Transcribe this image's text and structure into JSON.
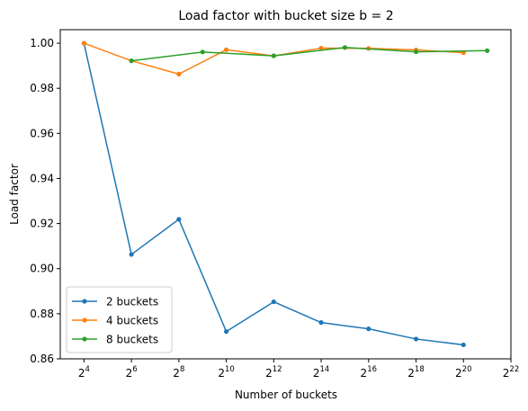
{
  "chart_data": {
    "type": "line",
    "title": "Load factor with bucket size b = 2",
    "xlabel": "Number of buckets",
    "ylabel": "Load factor",
    "xscale": "log2",
    "xlim_exponent": [
      3.0,
      22
    ],
    "ylim": [
      0.86,
      1.006
    ],
    "x_ticks": [
      {
        "exp": 4,
        "base": "2",
        "sup": "4"
      },
      {
        "exp": 6,
        "base": "2",
        "sup": "6"
      },
      {
        "exp": 8,
        "base": "2",
        "sup": "8"
      },
      {
        "exp": 10,
        "base": "2",
        "sup": "10"
      },
      {
        "exp": 12,
        "base": "2",
        "sup": "12"
      },
      {
        "exp": 14,
        "base": "2",
        "sup": "14"
      },
      {
        "exp": 16,
        "base": "2",
        "sup": "16"
      },
      {
        "exp": 18,
        "base": "2",
        "sup": "18"
      },
      {
        "exp": 20,
        "base": "2",
        "sup": "20"
      },
      {
        "exp": 22,
        "base": "2",
        "sup": "22"
      }
    ],
    "y_ticks": [
      {
        "value": 0.86,
        "label": "0.86"
      },
      {
        "value": 0.88,
        "label": "0.88"
      },
      {
        "value": 0.9,
        "label": "0.90"
      },
      {
        "value": 0.92,
        "label": "0.92"
      },
      {
        "value": 0.94,
        "label": "0.94"
      },
      {
        "value": 0.96,
        "label": "0.96"
      },
      {
        "value": 0.98,
        "label": "0.98"
      },
      {
        "value": 1.0,
        "label": "1.00"
      }
    ],
    "grid": false,
    "legend_position": "lower-left",
    "series": [
      {
        "name": "2 buckets",
        "color": "#1f77b4",
        "x_exponents": [
          4,
          6,
          8,
          10,
          12,
          14,
          16,
          18,
          20
        ],
        "values": [
          1.0,
          0.9063,
          0.9219,
          0.8721,
          0.8853,
          0.8761,
          0.8733,
          0.8688,
          0.8662
        ]
      },
      {
        "name": "4 buckets",
        "color": "#ff7f0e",
        "x_exponents": [
          4,
          6,
          8,
          10,
          12,
          14,
          16,
          18,
          20
        ],
        "values": [
          1.0,
          0.9922,
          0.9863,
          0.9971,
          0.9944,
          0.9978,
          0.9977,
          0.997,
          0.9958
        ]
      },
      {
        "name": "8 buckets",
        "color": "#2ca02c",
        "x_exponents": [
          6,
          9,
          12,
          15,
          18,
          21
        ],
        "values": [
          0.9922,
          0.9961,
          0.9944,
          0.9981,
          0.9962,
          0.9967
        ]
      }
    ]
  }
}
